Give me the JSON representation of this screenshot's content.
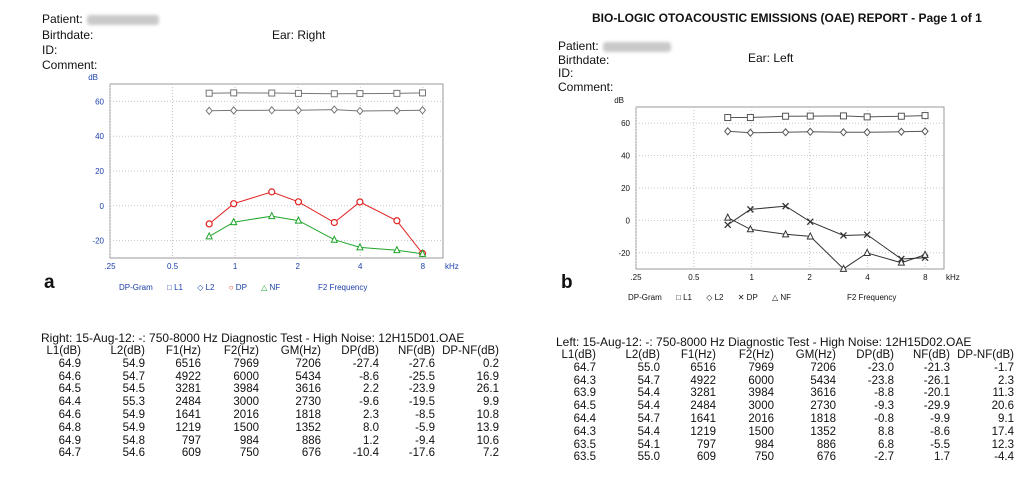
{
  "panel_a": {
    "header": {
      "patient_label": "Patient:",
      "birthdate_label": "Birthdate:",
      "id_label": "ID:",
      "comment_label": "Comment:",
      "ear_label": "Ear: Right"
    },
    "letter": "a",
    "footer_labels": {
      "dp_gram": "DP-Gram",
      "l1": "L1",
      "l2": "L2",
      "dp": "DP",
      "nf": "NF",
      "f2_frequency": "F2 Frequency"
    },
    "test_line": "Right: 15-Aug-12: -: 750-8000 Hz Diagnostic Test - High Noise: 12H15D01.OAE",
    "table": {
      "columns": [
        "L1(dB)",
        "L2(dB)",
        "F1(Hz)",
        "F2(Hz)",
        "GM(Hz)",
        "DP(dB)",
        "NF(dB)",
        "DP-NF(dB)"
      ],
      "rows": [
        [
          "64.9",
          "54.9",
          "6516",
          "7969",
          "7206",
          "-27.4",
          "-27.6",
          "0.2"
        ],
        [
          "64.6",
          "54.7",
          "4922",
          "6000",
          "5434",
          "-8.6",
          "-25.5",
          "16.9"
        ],
        [
          "64.5",
          "54.5",
          "3281",
          "3984",
          "3616",
          "2.2",
          "-23.9",
          "26.1"
        ],
        [
          "64.4",
          "55.3",
          "2484",
          "3000",
          "2730",
          "-9.6",
          "-19.5",
          "9.9"
        ],
        [
          "64.6",
          "54.9",
          "1641",
          "2016",
          "1818",
          "2.3",
          "-8.5",
          "10.8"
        ],
        [
          "64.8",
          "54.9",
          "1219",
          "1500",
          "1352",
          "8.0",
          "-5.9",
          "13.9"
        ],
        [
          "64.9",
          "54.8",
          "797",
          "984",
          "886",
          "1.2",
          "-9.4",
          "10.6"
        ],
        [
          "64.7",
          "54.6",
          "609",
          "750",
          "676",
          "-10.4",
          "-17.6",
          "7.2"
        ]
      ]
    }
  },
  "panel_b": {
    "report_title": "BIO-LOGIC OTOACOUSTIC EMISSIONS (OAE) REPORT - Page 1 of 1",
    "header": {
      "patient_label": "Patient:",
      "birthdate_label": "Birthdate:",
      "id_label": "ID:",
      "comment_label": "Comment:",
      "ear_label": "Ear: Left"
    },
    "letter": "b",
    "footer_labels": {
      "dp_gram": "DP-Gram",
      "l1": "L1",
      "l2": "L2",
      "dp": "DP",
      "nf": "NF",
      "f2_frequency": "F2 Frequency"
    },
    "test_line": "Left: 15-Aug-12: -: 750-8000 Hz Diagnostic Test - High Noise: 12H15D02.OAE",
    "table": {
      "columns": [
        "L1(dB)",
        "L2(dB)",
        "F1(Hz)",
        "F2(Hz)",
        "GM(Hz)",
        "DP(dB)",
        "NF(dB)",
        "DP-NF(dB)"
      ],
      "rows": [
        [
          "64.7",
          "55.0",
          "6516",
          "7969",
          "7206",
          "-23.0",
          "-21.3",
          "-1.7"
        ],
        [
          "64.3",
          "54.7",
          "4922",
          "6000",
          "5434",
          "-23.8",
          "-26.1",
          "2.3"
        ],
        [
          "63.9",
          "54.4",
          "3281",
          "3984",
          "3616",
          "-8.8",
          "-20.1",
          "11.3"
        ],
        [
          "64.5",
          "54.4",
          "2484",
          "3000",
          "2730",
          "-9.3",
          "-29.9",
          "20.6"
        ],
        [
          "64.4",
          "54.7",
          "1641",
          "2016",
          "1818",
          "-0.8",
          "-9.9",
          "9.1"
        ],
        [
          "64.3",
          "54.4",
          "1219",
          "1500",
          "1352",
          "8.8",
          "-8.6",
          "17.4"
        ],
        [
          "63.5",
          "54.1",
          "797",
          "984",
          "886",
          "6.8",
          "-5.5",
          "12.3"
        ],
        [
          "63.5",
          "55.0",
          "609",
          "750",
          "676",
          "-2.7",
          "1.7",
          "-4.4"
        ]
      ]
    }
  },
  "chart_data": [
    {
      "type": "line",
      "panel": "a",
      "ylabel": "dB",
      "xlabel": "kHz",
      "x_scale": "log",
      "xlim": [
        0.25,
        10
      ],
      "ylim": [
        -30,
        70
      ],
      "x_ticks": [
        0.25,
        0.5,
        1,
        2,
        4,
        8
      ],
      "x_tick_labels": [
        ".25",
        "0.5",
        "1",
        "2",
        "4",
        "8"
      ],
      "y_ticks": [
        -20,
        0,
        20,
        40,
        60
      ],
      "y_tick_labels": [
        "-20",
        "0",
        "20",
        "40",
        "60"
      ],
      "grid": true,
      "grid_style": "dotted",
      "x": [
        0.75,
        0.984,
        1.5,
        2.016,
        3.0,
        3.984,
        6.0,
        7.969
      ],
      "series": [
        {
          "name": "L1",
          "color": "#777777",
          "marker": "square",
          "values": [
            64.7,
            64.9,
            64.8,
            64.6,
            64.4,
            64.5,
            64.6,
            64.9
          ]
        },
        {
          "name": "L2",
          "color": "#777777",
          "marker": "diamond",
          "values": [
            54.6,
            54.8,
            54.9,
            54.9,
            55.3,
            54.5,
            54.7,
            54.9
          ]
        },
        {
          "name": "DP",
          "color": "#e02020",
          "marker": "circle",
          "values": [
            -10.4,
            1.2,
            8.0,
            2.3,
            -9.6,
            2.2,
            -8.6,
            -27.4
          ]
        },
        {
          "name": "NF",
          "color": "#1fa52a",
          "marker": "triangle",
          "values": [
            -17.6,
            -9.4,
            -5.9,
            -8.5,
            -19.5,
            -23.9,
            -25.5,
            -27.6
          ]
        }
      ]
    },
    {
      "type": "line",
      "panel": "b",
      "ylabel": "dB",
      "xlabel": "kHz",
      "x_scale": "log",
      "xlim": [
        0.25,
        10
      ],
      "ylim": [
        -30,
        70
      ],
      "x_ticks": [
        0.25,
        0.5,
        1,
        2,
        4,
        8
      ],
      "x_tick_labels": [
        ".25",
        "0.5",
        "1",
        "2",
        "4",
        "8"
      ],
      "y_ticks": [
        -20,
        0,
        20,
        40,
        60
      ],
      "y_tick_labels": [
        "-20",
        "0",
        "20",
        "40",
        "60"
      ],
      "grid": true,
      "grid_style": "dotted",
      "x": [
        0.75,
        0.984,
        1.5,
        2.016,
        3.0,
        3.984,
        6.0,
        7.969
      ],
      "series": [
        {
          "name": "L1",
          "color": "#555555",
          "marker": "square",
          "values": [
            63.5,
            63.5,
            64.3,
            64.4,
            64.5,
            63.9,
            64.3,
            64.7
          ]
        },
        {
          "name": "L2",
          "color": "#555555",
          "marker": "diamond",
          "values": [
            55.0,
            54.1,
            54.4,
            54.7,
            54.4,
            54.4,
            54.7,
            55.0
          ]
        },
        {
          "name": "DP",
          "color": "#333333",
          "marker": "x",
          "values": [
            -2.7,
            6.8,
            8.8,
            -0.8,
            -9.3,
            -8.8,
            -23.8,
            -23.0
          ]
        },
        {
          "name": "NF",
          "color": "#333333",
          "marker": "triangle",
          "values": [
            1.7,
            -5.5,
            -8.6,
            -9.9,
            -29.9,
            -20.1,
            -26.1,
            -21.3
          ]
        }
      ]
    }
  ]
}
